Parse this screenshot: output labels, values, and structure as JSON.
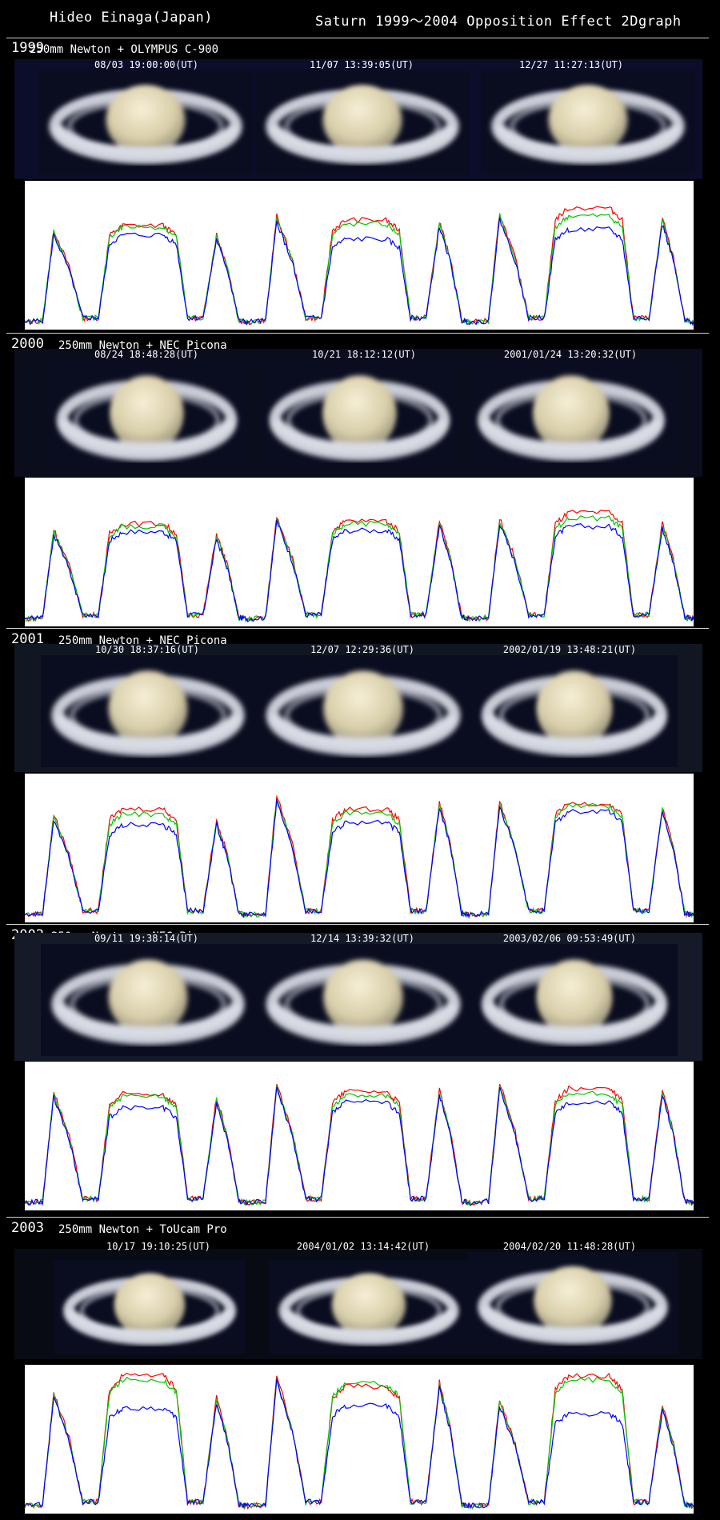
{
  "header": {
    "author": "Hideo Einaga(Japan)",
    "title": "Saturn 1999～2004  Opposition Effect 2Dgraph"
  },
  "colors": {
    "red": "#ff0000",
    "green": "#00c800",
    "blue": "#0000ff",
    "background": "#000000"
  },
  "sections": [
    {
      "year": "1999",
      "equipment": "250mm Newton + OLYMPUS C-900",
      "timestamps": [
        "08/03  19:00:00(UT)",
        "11/07  13:39:05(UT)",
        "12/27  11:27:13(UT)"
      ]
    },
    {
      "year": "2000",
      "equipment": "250mm Newton + NEC Picona",
      "timestamps": [
        "08/24  18:48:28(UT)",
        "10/21  18:12:12(UT)",
        "2001/01/24  13:20:32(UT)"
      ]
    },
    {
      "year": "2001",
      "equipment": "250mm Newton + NEC Picona",
      "timestamps": [
        "10/30  18:37:16(UT)",
        "12/07  12:29:36(UT)",
        "2002/01/19  13:48:21(UT)"
      ]
    },
    {
      "year": "2002",
      "equipment": "250mm Newton + NEC Picona",
      "timestamps": [
        "09/11  19:38:14(UT)",
        "12/14  13:39:32(UT)",
        "2003/02/06  09:53:49(UT)"
      ]
    },
    {
      "year": "2003",
      "equipment": "250mm Newton + ToUcam Pro",
      "timestamps": [
        "10/17  19:10:25(UT)",
        "2004/01/02  13:14:42(UT)",
        "2004/02/20  11:48:28(UT)"
      ]
    }
  ],
  "chart_data": [
    {
      "type": "line",
      "series_colors": [
        "red",
        "green",
        "blue"
      ],
      "peak_levels": [
        {
          "ring": 0.7,
          "globe_red": 0.73,
          "globe_green": 0.72,
          "globe_blue": 0.66
        },
        {
          "ring": 0.8,
          "globe_red": 0.77,
          "globe_green": 0.74,
          "globe_blue": 0.63
        },
        {
          "ring": 0.82,
          "globe_red": 0.86,
          "globe_green": 0.8,
          "globe_blue": 0.7
        }
      ]
    },
    {
      "type": "line",
      "series_colors": [
        "red",
        "green",
        "blue"
      ],
      "peak_levels": [
        {
          "ring": 0.68,
          "globe_red": 0.72,
          "globe_green": 0.7,
          "globe_blue": 0.66
        },
        {
          "ring": 0.78,
          "globe_red": 0.74,
          "globe_green": 0.72,
          "globe_blue": 0.67
        },
        {
          "ring": 0.76,
          "globe_red": 0.8,
          "globe_green": 0.76,
          "globe_blue": 0.7
        }
      ]
    },
    {
      "type": "line",
      "series_colors": [
        "red",
        "green",
        "blue"
      ],
      "peak_levels": [
        {
          "ring": 0.76,
          "globe_red": 0.8,
          "globe_green": 0.76,
          "globe_blue": 0.68
        },
        {
          "ring": 0.9,
          "globe_red": 0.8,
          "globe_green": 0.77,
          "globe_blue": 0.7
        },
        {
          "ring": 0.86,
          "globe_red": 0.84,
          "globe_green": 0.82,
          "globe_blue": 0.78
        }
      ]
    },
    {
      "type": "line",
      "series_colors": [
        "red",
        "green",
        "blue"
      ],
      "peak_levels": [
        {
          "ring": 0.84,
          "globe_red": 0.82,
          "globe_green": 0.8,
          "globe_blue": 0.72
        },
        {
          "ring": 0.9,
          "globe_red": 0.84,
          "globe_green": 0.81,
          "globe_blue": 0.76
        },
        {
          "ring": 0.9,
          "globe_red": 0.86,
          "globe_green": 0.82,
          "globe_blue": 0.76
        }
      ]
    },
    {
      "type": "line",
      "series_colors": [
        "red",
        "green",
        "blue"
      ],
      "peak_levels": [
        {
          "ring": 0.86,
          "globe_red": 0.98,
          "globe_green": 0.95,
          "globe_blue": 0.74
        },
        {
          "ring": 0.98,
          "globe_red": 0.9,
          "globe_green": 0.92,
          "globe_blue": 0.76
        },
        {
          "ring": 0.8,
          "globe_red": 0.98,
          "globe_green": 0.95,
          "globe_blue": 0.7
        }
      ]
    }
  ]
}
